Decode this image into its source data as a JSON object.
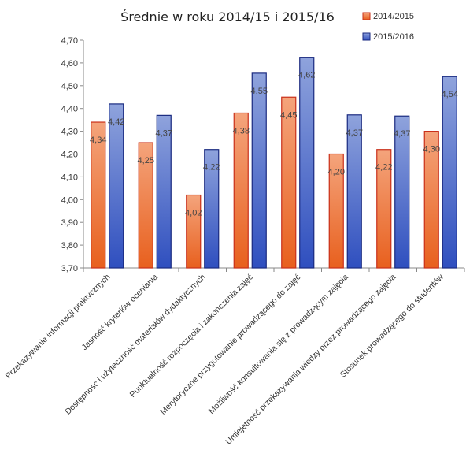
{
  "chart_data": {
    "type": "bar",
    "title": "Średnie  w roku 2014/15 i 2015/16",
    "xlabel": "",
    "ylabel": "",
    "ylim": [
      3.7,
      4.7
    ],
    "yticks": [
      "3,70",
      "3,80",
      "3,90",
      "4,00",
      "4,10",
      "4,20",
      "4,30",
      "4,40",
      "4,50",
      "4,60",
      "4,70"
    ],
    "categories": [
      "Przekazywanie informacji praktycznych",
      "Jasność kryteriów oceniania",
      "Dostępność i użyteczność materiałów dydaktycznych",
      "Punktualność rozpoczęcia i zakończenia zajęć",
      "Merytoryczne przygotowanie prowadzącego do zajęć",
      "Możliwość konsultowania się z prowadzącym zajęcia",
      "Umiejętność przekazywania wiedzy przez prowadzącego zajęcia",
      "Stosunek prowadzącego do studentów"
    ],
    "series": [
      {
        "name": "2014/2015",
        "values": [
          4.34,
          4.25,
          4.02,
          4.38,
          4.45,
          4.2,
          4.22,
          4.3
        ],
        "labels": [
          "4,34",
          "4,25",
          "4,02",
          "4,38",
          "4,45",
          "4,20",
          "4,22",
          "4,30"
        ],
        "color_top": "#f4a47c",
        "color_bottom": "#e8601e",
        "stroke": "#c9301a"
      },
      {
        "name": "2015/2016",
        "values": [
          4.42,
          4.37,
          4.22,
          4.555,
          4.625,
          4.372,
          4.367,
          4.54
        ],
        "labels": [
          "4,42",
          "4,37",
          "4,22",
          "4,55",
          "4,62",
          "4,37",
          "4,37",
          "4,54"
        ],
        "color_top": "#8fa3dc",
        "color_bottom": "#2f4fbf",
        "stroke": "#1a2a80"
      }
    ],
    "grid": false,
    "legend_position": "top-right"
  }
}
